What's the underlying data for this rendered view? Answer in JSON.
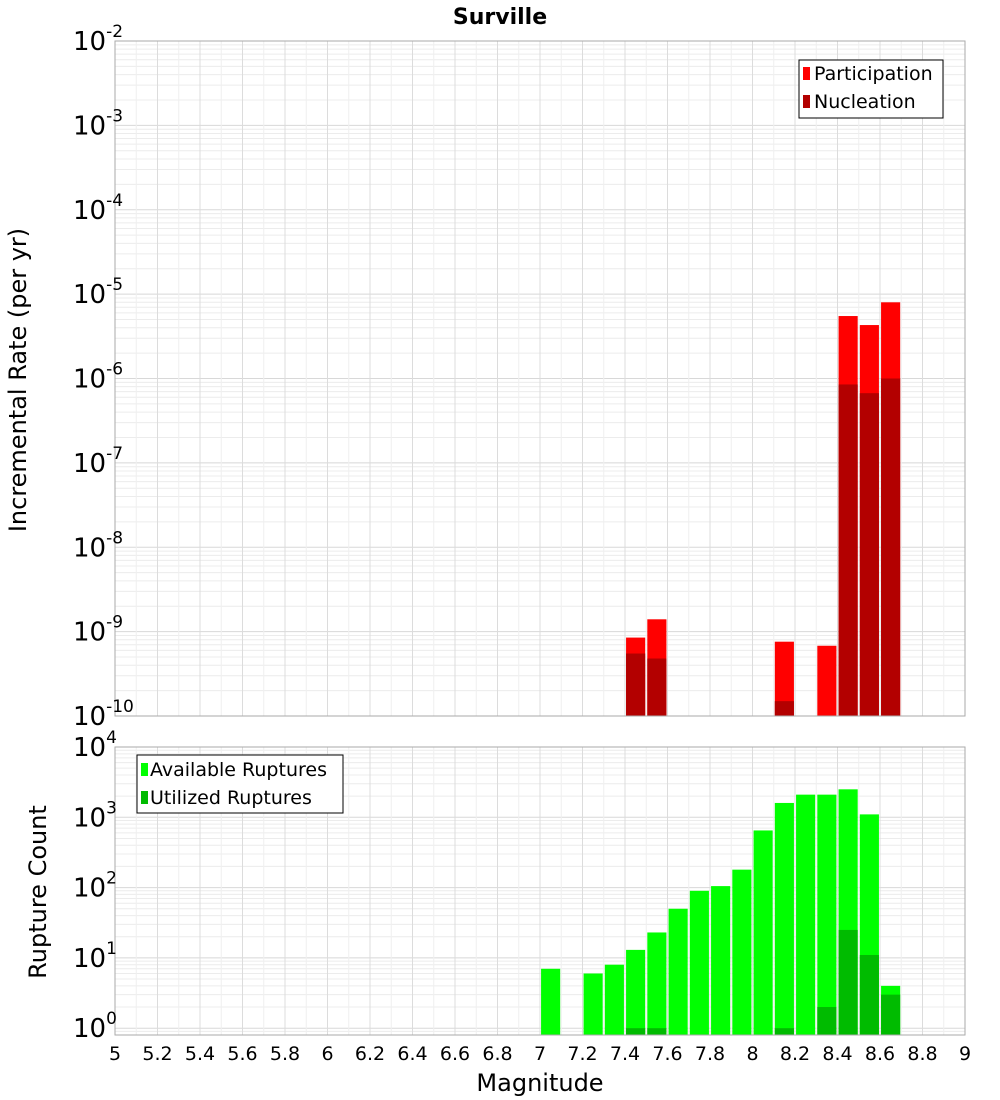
{
  "chart_data": [
    {
      "type": "bar",
      "title": "Surville",
      "ylabel": "Incremental Rate (per yr)",
      "xlabel": "",
      "xlim": [
        5,
        9
      ],
      "ylim": [
        1e-10,
        0.01
      ],
      "yscale": "log",
      "y_tick_exponents": [
        -2,
        -3,
        -4,
        -5,
        -6,
        -7,
        -8,
        -9,
        -10
      ],
      "grid": true,
      "legend_placement": "top-right",
      "bar_width": 0.09,
      "series": [
        {
          "name": "Participation",
          "color": "#ff0000",
          "x": [
            7.45,
            7.55,
            8.15,
            8.35,
            8.45,
            8.55,
            8.65
          ],
          "values": [
            8.5e-10,
            1.4e-09,
            7.6e-10,
            6.8e-10,
            5.5e-06,
            4.3e-06,
            8e-06
          ]
        },
        {
          "name": "Nucleation",
          "color": "#b30000",
          "x": [
            7.45,
            7.55,
            8.15,
            8.45,
            8.55,
            8.65
          ],
          "values": [
            5.5e-10,
            4.8e-10,
            1.5e-10,
            8.5e-07,
            6.7e-07,
            1e-06
          ]
        }
      ]
    },
    {
      "type": "bar",
      "ylabel": "Rupture Count",
      "xlabel": "Magnitude",
      "xlim": [
        5,
        9
      ],
      "ylim": [
        0.8,
        10000.0
      ],
      "yscale": "log",
      "y_tick_exponents": [
        4,
        3,
        2,
        1,
        0
      ],
      "x_tick_labels": [
        "5",
        "5.2",
        "5.4",
        "5.6",
        "5.8",
        "6",
        "6.2",
        "6.4",
        "6.6",
        "6.8",
        "7",
        "7.2",
        "7.4",
        "7.6",
        "7.8",
        "8",
        "8.2",
        "8.4",
        "8.6",
        "8.8",
        "9"
      ],
      "grid": true,
      "legend_placement": "top-left",
      "bar_width": 0.09,
      "series": [
        {
          "name": "Available Ruptures",
          "color": "#00ff00",
          "x": [
            7.05,
            7.25,
            7.35,
            7.45,
            7.55,
            7.65,
            7.75,
            7.85,
            7.95,
            8.05,
            8.15,
            8.25,
            8.35,
            8.45,
            8.55,
            8.65
          ],
          "values": [
            7,
            6,
            8,
            13,
            23,
            50,
            90,
            105,
            180,
            650,
            1600,
            2100,
            2100,
            2500,
            1100,
            4
          ]
        },
        {
          "name": "Utilized Ruptures",
          "color": "#00bb00",
          "x": [
            7.45,
            7.55,
            8.15,
            8.35,
            8.45,
            8.55,
            8.65
          ],
          "values": [
            1,
            1,
            1,
            2,
            25,
            11,
            3
          ]
        }
      ]
    }
  ]
}
